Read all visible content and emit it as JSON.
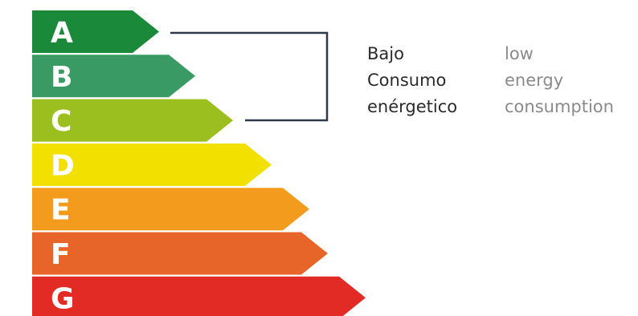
{
  "rating_scale": [
    {
      "grade": "A",
      "color": "#1a8a3a"
    },
    {
      "grade": "B",
      "color": "#3a9a63"
    },
    {
      "grade": "C",
      "color": "#9bbf1f"
    },
    {
      "grade": "D",
      "color": "#f1e000"
    },
    {
      "grade": "E",
      "color": "#f29b1d"
    },
    {
      "grade": "F",
      "color": "#e8652a"
    },
    {
      "grade": "G",
      "color": "#e12b24"
    }
  ],
  "bracket_color": "#2d3a4a",
  "caption_spanish": {
    "line1": "Bajo",
    "line2": "Consumo",
    "line3": "enérgetico"
  },
  "caption_english": {
    "line1": "low",
    "line2": "energy",
    "line3": "consumption"
  }
}
